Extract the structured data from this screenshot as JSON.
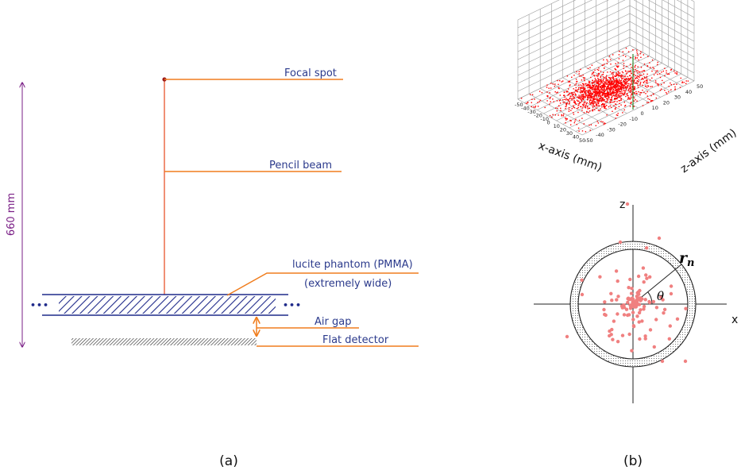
{
  "panel_a": {
    "caption": "(a)",
    "distance_label": "660 mm",
    "labels": {
      "focal_spot": "Focal spot",
      "pencil_beam": "Pencil beam",
      "phantom_line1": "lucite phantom (PMMA)",
      "phantom_line2": "(extremely wide)",
      "air_gap": "Air gap",
      "flat_detector": "Flat detector"
    },
    "ellipsis_left": "•••",
    "ellipsis_right": "•••",
    "colors": {
      "leader": "#f07d1e",
      "beam": "#e8552d",
      "label": "#2b3a8c",
      "dimension": "#7a1f86",
      "phantom": "#1f2a8a"
    }
  },
  "panel_b": {
    "caption": "(b)",
    "plot3d": {
      "x_axis_label": "x-axis (mm)",
      "z_axis_label": "z-axis (mm)",
      "x_ticks": [
        "-50",
        "-40",
        "-30",
        "-20",
        "-10",
        "0",
        "10",
        "20",
        "30",
        "40",
        "50"
      ],
      "z_ticks": [
        "-50",
        "-40",
        "-30",
        "-20",
        "-10",
        "0",
        "10",
        "20",
        "30",
        "40",
        "50"
      ],
      "point_color": "#ff0000"
    },
    "polar": {
      "z_label": "z",
      "x_label": "x",
      "radius_label": "r",
      "radius_subscript": "n",
      "angle_label": "θ",
      "point_color": "#f08080"
    }
  }
}
